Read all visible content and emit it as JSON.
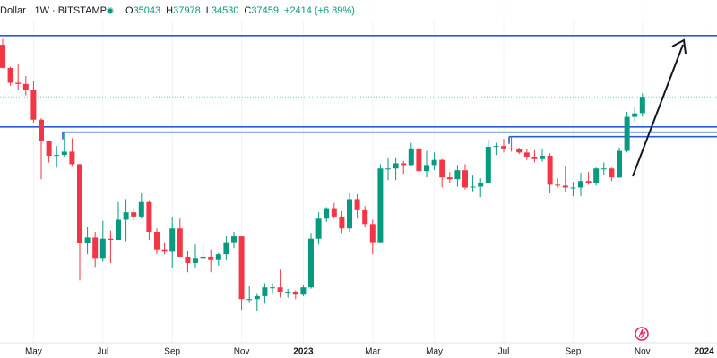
{
  "header": {
    "symbol": "Dollar · 1W · BITSTAMP",
    "ohlc": [
      {
        "label": "O",
        "value": 35043
      },
      {
        "label": "H",
        "value": 37978
      },
      {
        "label": "L",
        "value": 34530
      },
      {
        "label": "C",
        "value": 37459
      }
    ],
    "change": "+2414 (+6.89%)"
  },
  "chart_data": {
    "type": "candlestick",
    "log_scale": true,
    "grid": true,
    "up_color": "#089981",
    "down_color": "#f23645",
    "level_color": "#2a5bd7",
    "ylim": [
      13620,
      55800
    ],
    "categories": [
      null,
      null,
      null,
      null,
      "May",
      null,
      null,
      null,
      null,
      null,
      null,
      null,
      null,
      "Jul",
      null,
      null,
      null,
      null,
      null,
      null,
      null,
      null,
      "Sep",
      null,
      null,
      null,
      null,
      null,
      null,
      null,
      null,
      "Nov",
      null,
      null,
      null,
      null,
      null,
      null,
      null,
      "2023",
      null,
      null,
      null,
      null,
      null,
      null,
      null,
      null,
      "Mar",
      null,
      null,
      null,
      null,
      null,
      null,
      null,
      "May",
      null,
      null,
      null,
      null,
      null,
      null,
      null,
      null,
      "Jul",
      null,
      null,
      null,
      null,
      null,
      null,
      null,
      null,
      "Sep",
      null,
      null,
      null,
      null,
      null,
      null,
      null,
      null,
      "Nov",
      null,
      null,
      null,
      null,
      null,
      null,
      null,
      "2024"
    ],
    "open": [
      46400,
      42200,
      39700,
      39500,
      38500,
      34100,
      31300,
      29400,
      29500,
      29900,
      28400,
      20500,
      21000,
      19300,
      20900,
      20800,
      22600,
      23300,
      22900,
      24300,
      21500,
      20000,
      19800,
      21800,
      19400,
      18900,
      19300,
      19400,
      19200,
      19600,
      20600,
      21100,
      16300,
      16300,
      16500,
      17100,
      17100,
      16800,
      16800,
      16600,
      17100,
      20900,
      22700,
      23700,
      22900,
      21800,
      24600,
      23500,
      22200,
      20600,
      27900,
      27900,
      28500,
      28300,
      30300,
      27600,
      28300,
      28900,
      26900,
      26700,
      27700,
      25800,
      25900,
      26300,
      30500,
      30600,
      30300,
      30200,
      29800,
      29300,
      29000,
      29400,
      26100,
      26000,
      25800,
      25800,
      26500,
      26300,
      27900,
      27900,
      26900,
      30000,
      34500,
      35043,
      null,
      null,
      null,
      null,
      null,
      null,
      null,
      null
    ],
    "high": [
      47500,
      42400,
      42900,
      40800,
      40000,
      34300,
      31300,
      30600,
      32400,
      31600,
      28400,
      21900,
      21500,
      22500,
      21600,
      24300,
      24600,
      23600,
      25200,
      24400,
      21800,
      20600,
      22800,
      22700,
      19900,
      20400,
      20500,
      20000,
      19700,
      21100,
      21500,
      21100,
      17200,
      16700,
      17400,
      17400,
      18400,
      17000,
      16900,
      17300,
      21400,
      23300,
      23800,
      24200,
      23400,
      25200,
      25100,
      23900,
      22600,
      28400,
      29100,
      29200,
      28800,
      31000,
      30400,
      30000,
      29800,
      29000,
      27500,
      28300,
      28400,
      27100,
      26800,
      31400,
      31000,
      31500,
      31800,
      30400,
      30300,
      30100,
      30200,
      29700,
      26800,
      28100,
      26400,
      27400,
      27500,
      28000,
      28600,
      28000,
      30400,
      35200,
      35900,
      37978,
      null,
      null,
      null,
      null,
      null,
      null,
      null,
      null
    ],
    "low": [
      42100,
      39200,
      38600,
      37700,
      33700,
      26700,
      28600,
      28000,
      29300,
      28100,
      17600,
      19600,
      18600,
      19000,
      18900,
      20800,
      20700,
      22500,
      22700,
      20800,
      19600,
      19600,
      18500,
      19400,
      18200,
      18500,
      19200,
      18200,
      18700,
      19200,
      20100,
      15600,
      16100,
      15500,
      16000,
      16700,
      16400,
      16400,
      16300,
      16500,
      17000,
      20400,
      22400,
      22700,
      21400,
      21500,
      22700,
      21900,
      19600,
      20500,
      26600,
      26600,
      27300,
      28200,
      27100,
      26900,
      27700,
      25800,
      26300,
      25900,
      25600,
      25400,
      24800,
      26200,
      29500,
      29800,
      29900,
      29600,
      28900,
      28600,
      28700,
      25200,
      25800,
      25300,
      24900,
      24900,
      26100,
      26000,
      27200,
      26500,
      26800,
      29800,
      33800,
      34530,
      null,
      null,
      null,
      null,
      null,
      null,
      null,
      null
    ],
    "close": [
      42200,
      39700,
      39500,
      38500,
      34100,
      31300,
      29400,
      29500,
      29900,
      28400,
      20500,
      21000,
      19300,
      20900,
      20800,
      22600,
      23300,
      22900,
      24300,
      21500,
      20000,
      19800,
      21800,
      19400,
      18900,
      19300,
      19400,
      19200,
      19600,
      20600,
      21100,
      16300,
      16300,
      16500,
      17100,
      17100,
      16800,
      16800,
      16600,
      17100,
      20900,
      22700,
      23700,
      22900,
      21800,
      24600,
      23500,
      22200,
      20600,
      27900,
      27900,
      28500,
      28300,
      30300,
      27600,
      28300,
      28900,
      26900,
      26700,
      27700,
      25800,
      25900,
      26300,
      30500,
      30600,
      30300,
      30200,
      29800,
      29300,
      29000,
      29400,
      26100,
      26000,
      25800,
      25800,
      26500,
      26300,
      27900,
      27900,
      26900,
      30000,
      34500,
      35000,
      37459,
      null,
      null,
      null,
      null,
      null,
      null,
      null,
      null
    ],
    "levels": [
      48200,
      33100,
      32400,
      31800
    ]
  }
}
